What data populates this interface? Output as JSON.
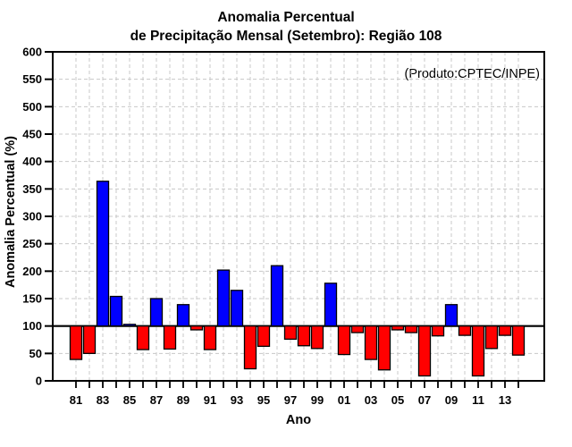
{
  "title": {
    "line1": "Anomalia Percentual",
    "line2": "de Precipitação Mensal (Setembro): Região 108"
  },
  "annotation": "(Produto:CPTEC/INPE)",
  "chart_data": {
    "type": "bar",
    "title": "Anomalia Percentual de Precipitação Mensal (Setembro): Região 108",
    "xlabel": "Ano",
    "ylabel": "Anomalia Percentual (%)",
    "ylim": [
      0,
      600
    ],
    "ytick_step": 50,
    "baseline": 100,
    "grid": true,
    "legend_position": "none",
    "years": [
      1981,
      1982,
      1983,
      1984,
      1985,
      1986,
      1987,
      1988,
      1989,
      1990,
      1991,
      1992,
      1993,
      1994,
      1995,
      1996,
      1997,
      1998,
      1999,
      2000,
      2001,
      2002,
      2003,
      2004,
      2005,
      2006,
      2007,
      2008,
      2009,
      2010,
      2011,
      2012,
      2013,
      2014
    ],
    "values": [
      39,
      50,
      364,
      154,
      103,
      57,
      150,
      58,
      139,
      93,
      57,
      202,
      165,
      22,
      63,
      210,
      76,
      64,
      59,
      178,
      48,
      88,
      39,
      20,
      93,
      88,
      9,
      82,
      139,
      83,
      9,
      59,
      83,
      47
    ],
    "xtick_labels": [
      "81",
      "83",
      "85",
      "87",
      "89",
      "91",
      "93",
      "95",
      "97",
      "99",
      "01",
      "03",
      "05",
      "07",
      "09",
      "11",
      "13"
    ],
    "colors": {
      "above_baseline": "#0000ff",
      "below_baseline": "#ff0000",
      "bar_outline": "#000000",
      "gridline": "#c8c8c8",
      "axis": "#000000",
      "annotation": "#a8a8a8"
    }
  }
}
